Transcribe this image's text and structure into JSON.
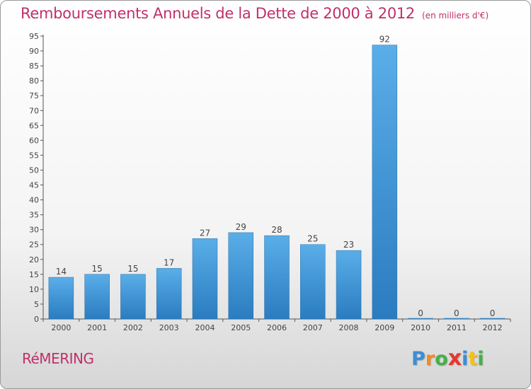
{
  "chart_data": {
    "type": "bar",
    "title": "Remboursements Annuels de la Dette de 2000 à 2012",
    "unit": "(en milliers d'€)",
    "categories": [
      "2000",
      "2001",
      "2002",
      "2003",
      "2004",
      "2005",
      "2006",
      "2007",
      "2008",
      "2009",
      "2010",
      "2011",
      "2012"
    ],
    "values": [
      14,
      15,
      15,
      17,
      27,
      29,
      28,
      25,
      23,
      92,
      0,
      0,
      0
    ],
    "ylim": [
      0,
      95
    ],
    "yticks": [
      0,
      5,
      10,
      15,
      20,
      25,
      30,
      35,
      40,
      45,
      50,
      55,
      60,
      65,
      70,
      75,
      80,
      85,
      90,
      95
    ],
    "grid": false,
    "legend": "none",
    "bar_color": "#4a9fdc",
    "title_color": "#c0306a"
  },
  "commune": "RéMERING",
  "brand": {
    "letters": [
      "P",
      "r",
      "o",
      "x",
      "i",
      "t",
      "i"
    ],
    "colors": [
      "#3b8ed8",
      "#f28c1c",
      "#44b04a",
      "#e8372f",
      "#3b8ed8",
      "#f2c21c",
      "#44b04a"
    ]
  }
}
